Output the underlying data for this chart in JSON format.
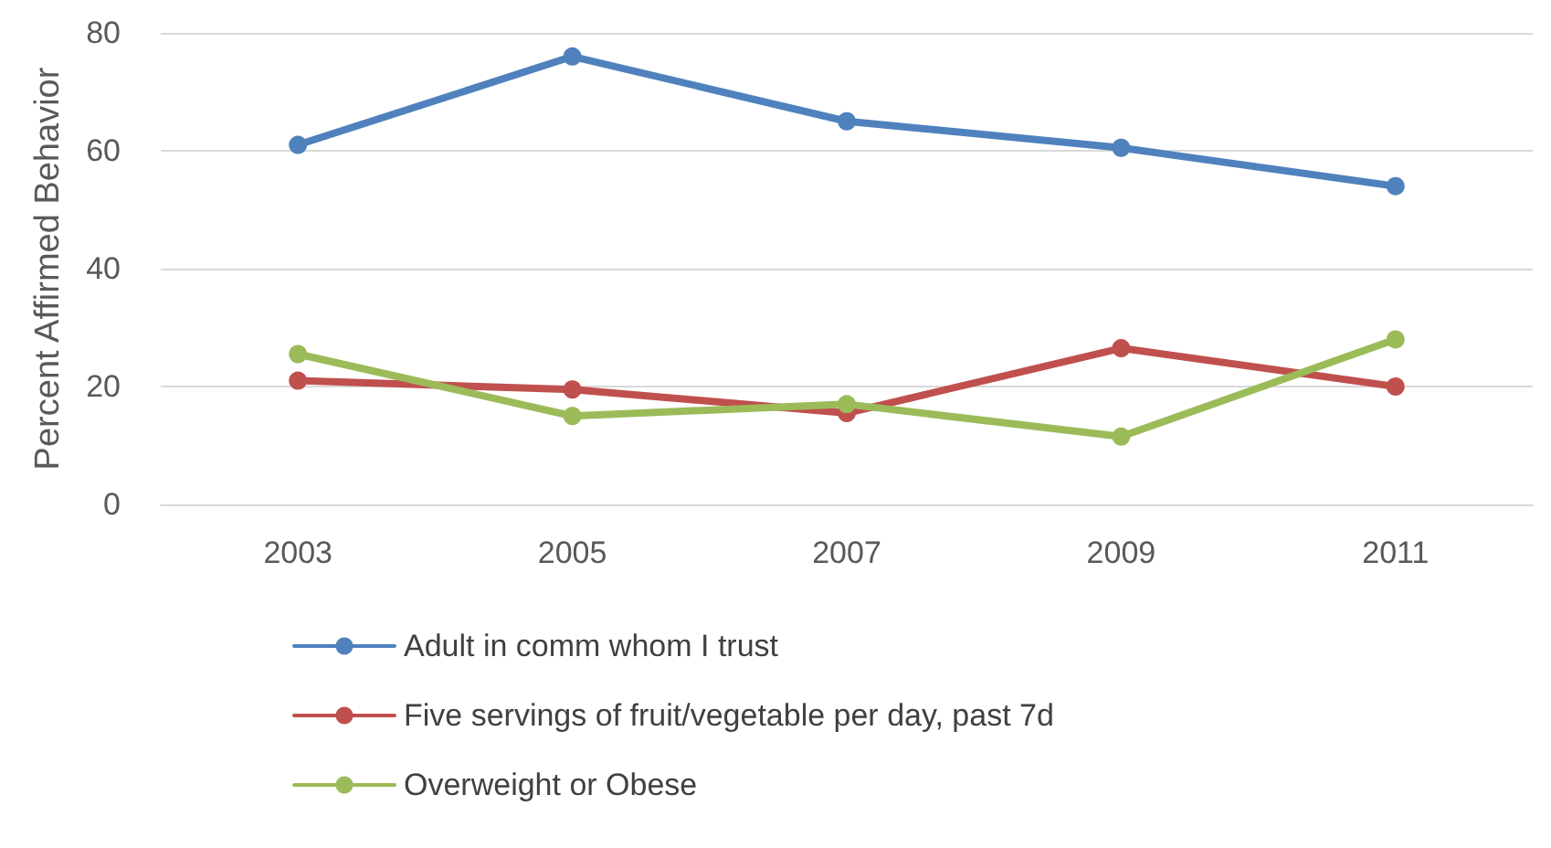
{
  "chart_data": {
    "type": "line",
    "ylabel": "Percent Affirmed Behavior",
    "categories": [
      "2003",
      "2005",
      "2007",
      "2009",
      "2011"
    ],
    "series": [
      {
        "name": "Adult in comm whom I trust",
        "color": "#4f81bd",
        "values": [
          61,
          76,
          65,
          60.5,
          54
        ]
      },
      {
        "name": "Five servings of fruit/vegetable per day, past 7d",
        "color": "#c0504d",
        "values": [
          21,
          19.5,
          15.5,
          26.5,
          20
        ]
      },
      {
        "name": "Overweight or Obese",
        "color": "#9bbb59",
        "values": [
          25.5,
          15,
          17,
          11.5,
          28
        ]
      }
    ],
    "ylim": [
      0,
      80
    ],
    "yticks": [
      0,
      20,
      40,
      60,
      80
    ],
    "grid": "y",
    "legend": "bottom",
    "marker": "circle",
    "line_style": "solid"
  }
}
